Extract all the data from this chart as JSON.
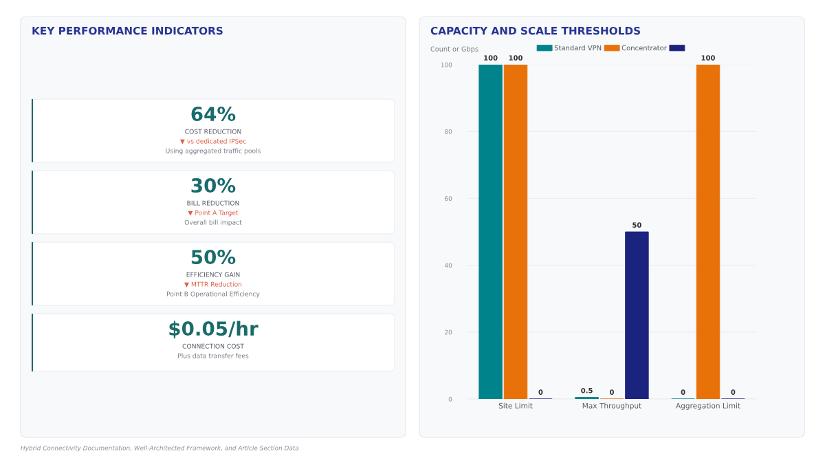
{
  "chart_data": [
    {
      "type": "other",
      "title": "KEY PERFORMANCE INDICATORS",
      "annotations": [
        "Hybrid Connectivity Documentation, Well-Architected Framework, and Article Section Data"
      ]
    },
    {
      "type": "other",
      "title": "64%",
      "subtitle": "COST REDUCTION",
      "annotations": [
        "▼ vs dedicated IPSec",
        "Using aggregated traffic pools"
      ]
    },
    {
      "type": "other",
      "title": "30%",
      "subtitle": "BILL REDUCTION",
      "annotations": [
        "▼ Point A Target",
        "Overall bill impact"
      ]
    },
    {
      "type": "other",
      "title": "50%",
      "subtitle": "EFFICIENCY GAIN",
      "annotations": [
        "▼ MTTR Reduction",
        "Point B Operational Efficiency"
      ]
    },
    {
      "type": "other",
      "title": "$0.05/hr",
      "subtitle": "CONNECTION COST",
      "annotations": [
        "Plus data transfer fees"
      ]
    },
    {
      "type": "bar",
      "title": "CAPACITY AND SCALE THRESHOLDS",
      "ylabel": "Count or Gbps",
      "categories": [
        "Site Limit",
        "Max Throughput",
        "Aggregation Limit"
      ],
      "series": [
        {
          "name": "Standard VPN",
          "color": "#00838a",
          "values": [
            100,
            0.5,
            0
          ]
        },
        {
          "name": "Concentrator",
          "color": "#e8710a",
          "values": [
            100,
            0,
            100
          ]
        },
        {
          "color": "#1a237e",
          "values": [
            0,
            50,
            0
          ]
        }
      ],
      "ylim": [
        0,
        100
      ],
      "yticks": [
        0,
        20,
        40,
        60,
        80,
        100
      ],
      "grid": "y",
      "legend": "top",
      "data_labels": true
    }
  ]
}
